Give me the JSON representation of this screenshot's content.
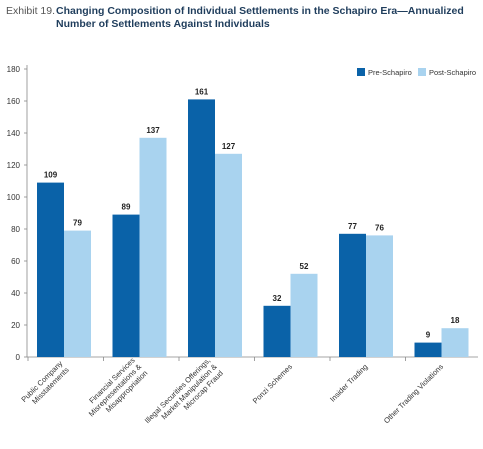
{
  "header": {
    "exhibit": "Exhibit 19.",
    "title": "Changing Composition of Individual Settlements in the Schapiro Era—Annualized Number of Settlements Against Individuals"
  },
  "colors": {
    "pre": "#0a62a8",
    "post": "#a9d3ef"
  },
  "chart_data": {
    "type": "bar",
    "title": "Changing Composition of Individual Settlements in the Schapiro Era—Annualized Number of Settlements Against Individuals",
    "categories": [
      [
        "Public Company",
        "Misstatements"
      ],
      [
        "Financial Services",
        "Misrepresentations &",
        "Misappropriation"
      ],
      [
        "Illegal Securities Offerings,",
        "Market Manipulation &",
        "Microcap Fraud"
      ],
      [
        "Ponzi Schemes"
      ],
      [
        "Insider Trading"
      ],
      [
        "Other Trading Violations"
      ]
    ],
    "series": [
      {
        "name": "Pre-Schapiro",
        "values": [
          109,
          89,
          161,
          32,
          77,
          9
        ]
      },
      {
        "name": "Post-Schapiro",
        "values": [
          79,
          137,
          127,
          52,
          76,
          18
        ]
      }
    ],
    "ylim": [
      0,
      180
    ],
    "yticks": [
      0,
      20,
      40,
      60,
      80,
      100,
      120,
      140,
      160,
      180
    ],
    "legend_position": "top-right"
  }
}
